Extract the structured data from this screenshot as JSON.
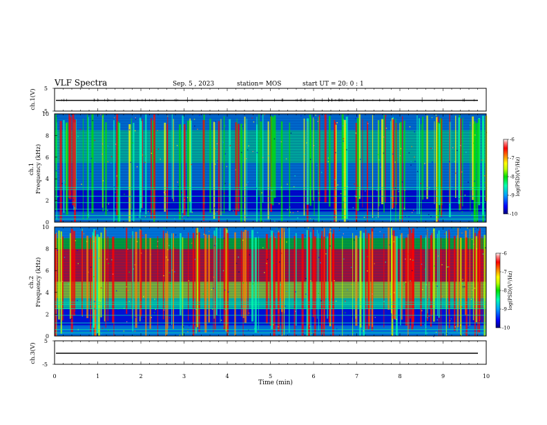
{
  "header": {
    "title": "VLF Spectra",
    "date": "Sep. 5 , 2023",
    "station": "station= MOS",
    "start": "start  UT =   20: 0  : 1"
  },
  "chart_data": [
    {
      "type": "line",
      "name": "ch1-waveform",
      "ylabel": "ch.1(V)",
      "yticks": [
        "5",
        "-5"
      ],
      "ylim": [
        -5,
        5
      ],
      "baseline": 0
    },
    {
      "type": "heatmap",
      "name": "ch1-spectrogram",
      "ylabel_top": "ch.1",
      "ylabel": "Frequency (kHz)",
      "yticks": [
        "0",
        "2",
        "4",
        "6",
        "8",
        "10"
      ],
      "ylim": [
        0,
        10
      ],
      "xlim": [
        0,
        10
      ],
      "colorbar": {
        "label": "log(PSD)(V²/Hz)",
        "ticks": [
          "-6",
          "-7",
          "-8",
          "-9",
          "-10"
        ],
        "range": [
          -10,
          -6
        ]
      }
    },
    {
      "type": "heatmap",
      "name": "ch2-spectrogram",
      "ylabel_top": "ch.2",
      "ylabel": "Frequency (kHz)",
      "yticks": [
        "0",
        "2",
        "4",
        "6",
        "8",
        "10"
      ],
      "ylim": [
        0,
        10
      ],
      "xlim": [
        0,
        10
      ],
      "colorbar": {
        "label": "log(PSD)(V²/Hz)",
        "ticks": [
          "-6",
          "-7",
          "-8",
          "-9",
          "-10"
        ],
        "range": [
          -10,
          -6
        ]
      }
    },
    {
      "type": "line",
      "name": "ch3-waveform",
      "ylabel": "ch.3(V)",
      "yticks": [
        "5",
        "-5"
      ],
      "ylim": [
        -5,
        5
      ],
      "baseline": 0
    }
  ],
  "xaxis": {
    "label": "Time  (min)",
    "ticks": [
      "0",
      "1",
      "2",
      "3",
      "4",
      "5",
      "6",
      "7",
      "8",
      "9",
      "10"
    ],
    "xlim": [
      0,
      10
    ]
  },
  "colors": {
    "colormap": [
      "#000080",
      "#0000ff",
      "#00a0ff",
      "#00ffb0",
      "#00e000",
      "#c0ff00",
      "#ffff00",
      "#ff8000",
      "#ff0000",
      "#ff8080",
      "#ffffff"
    ]
  }
}
